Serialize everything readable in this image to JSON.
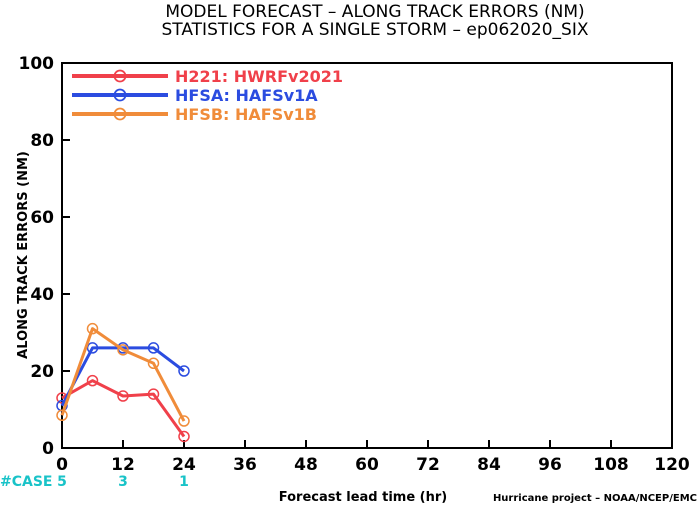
{
  "chart_data": {
    "type": "line",
    "title": "MODEL FORECAST – ALONG TRACK ERRORS (NM)",
    "subtitle": "STATISTICS FOR A SINGLE STORM – ep062020_SIX",
    "xlabel": "Forecast lead time (hr)",
    "ylabel": "ALONG TRACK ERRORS (NM)",
    "xlim": [
      0,
      120
    ],
    "ylim": [
      0,
      100
    ],
    "xticks": [
      "0",
      "12",
      "24",
      "36",
      "48",
      "60",
      "72",
      "84",
      "96",
      "108",
      "120"
    ],
    "yticks": [
      "0",
      "20",
      "40",
      "60",
      "80",
      "100"
    ],
    "legend_position": "top-left",
    "series": [
      {
        "name": "H221: HWRFv2021",
        "color": "#f0404a",
        "x": [
          0,
          6,
          12,
          18,
          24
        ],
        "y": [
          13,
          17.5,
          13.5,
          14,
          3
        ]
      },
      {
        "name": "HFSA: HAFSv1A",
        "color": "#2b4ce0",
        "x": [
          0,
          6,
          12,
          18,
          24
        ],
        "y": [
          11,
          26,
          26,
          26,
          20
        ]
      },
      {
        "name": "HFSB: HAFSv1B",
        "color": "#f08c3a",
        "x": [
          0,
          6,
          12,
          18,
          24
        ],
        "y": [
          8.5,
          31,
          25.5,
          22,
          7
        ]
      }
    ],
    "case_label": "#CASE",
    "case_color": "#19c3c8",
    "cases": [
      {
        "x": 0,
        "label": "5"
      },
      {
        "x": 12,
        "label": "3"
      },
      {
        "x": 24,
        "label": "1"
      }
    ],
    "credit": "Hurricane project – NOAA/NCEP/EMC"
  }
}
